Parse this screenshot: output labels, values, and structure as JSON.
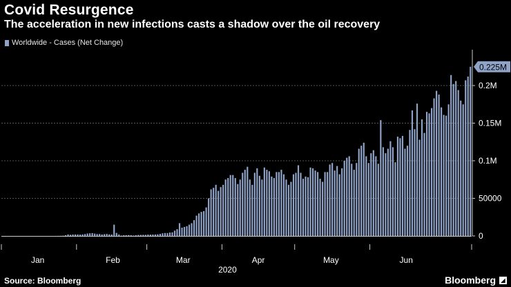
{
  "title": "Covid Resurgence",
  "subtitle": "The acceleration in new infections casts a shadow over the oil recovery",
  "source": "Source: Bloomberg",
  "brand": "Bloomberg",
  "colors": {
    "bar": "#8fa3c8",
    "grid": "#555555",
    "axis": "#cccccc",
    "text": "#ffffff"
  },
  "chart_data": {
    "type": "bar",
    "title": "Covid Resurgence",
    "xlabel": "2020",
    "ylabel": "",
    "ylim": [
      0,
      250000
    ],
    "legend": [
      "Worldwide - Cases (Net Change)"
    ],
    "y_ticks": [
      {
        "value": 0,
        "label": "0"
      },
      {
        "value": 50000,
        "label": "50000"
      },
      {
        "value": 100000,
        "label": "0.1M"
      },
      {
        "value": 150000,
        "label": "0.15M"
      },
      {
        "value": 200000,
        "label": "0.2M"
      }
    ],
    "x_ticks": [
      {
        "index": 0,
        "label": "Jan"
      },
      {
        "index": 31,
        "label": "Feb"
      },
      {
        "index": 60,
        "label": "Mar"
      },
      {
        "index": 91,
        "label": "Apr"
      },
      {
        "index": 121,
        "label": "May"
      },
      {
        "index": 152,
        "label": "Jun"
      }
    ],
    "year_label": {
      "index": 91,
      "label": "2020"
    },
    "last_value_label": "0.225M",
    "series": [
      {
        "name": "Worldwide - Cases (Net Change)",
        "values": [
          0,
          0,
          0,
          0,
          0,
          0,
          0,
          0,
          0,
          0,
          0,
          0,
          0,
          0,
          0,
          0,
          0,
          0,
          0,
          0,
          0,
          0,
          50,
          100,
          200,
          300,
          1000,
          2000,
          1500,
          2000,
          2000,
          2000,
          1800,
          2100,
          2500,
          3200,
          3500,
          3800,
          3100,
          2500,
          2600,
          2000,
          2400,
          2700,
          2100,
          2000,
          15000,
          4000,
          2000,
          500,
          1000,
          1000,
          1200,
          1000,
          500,
          1000,
          1300,
          1400,
          1500,
          1500,
          1800,
          1800,
          2000,
          2000,
          2200,
          2800,
          3500,
          3900,
          3800,
          4500,
          4800,
          7000,
          9000,
          17000,
          11000,
          12000,
          13000,
          15000,
          17000,
          21000,
          27000,
          30000,
          32000,
          33000,
          38000,
          50000,
          62000,
          64000,
          68000,
          60000,
          65000,
          68000,
          75000,
          77000,
          81000,
          81000,
          77000,
          69000,
          75000,
          84000,
          88000,
          92000,
          75000,
          68000,
          84000,
          90000,
          80000,
          75000,
          91000,
          88000,
          86000,
          79000,
          77000,
          85000,
          85000,
          88000,
          82000,
          75000,
          68000,
          72000,
          82000,
          84000,
          94000,
          84000,
          76000,
          79000,
          78000,
          91000,
          90000,
          87000,
          85000,
          76000,
          72000,
          85000,
          85000,
          95000,
          97000,
          87000,
          93000,
          82000,
          90000,
          100000,
          104000,
          106000,
          96000,
          88000,
          97000,
          116000,
          120000,
          124000,
          106000,
          97000,
          110000,
          114000,
          106000,
          96000,
          154000,
          118000,
          110000,
          116000,
          126000,
          118000,
          98000,
          132000,
          130000,
          133000,
          116000,
          120000,
          141000,
          167000,
          142000,
          176000,
          128000,
          155000,
          137000,
          165000,
          163000,
          170000,
          183000,
          193000,
          188000,
          171000,
          161000,
          160000,
          175000,
          214000,
          202000,
          206000,
          194000,
          180000,
          175000,
          207000,
          212000,
          225000
        ]
      }
    ]
  }
}
